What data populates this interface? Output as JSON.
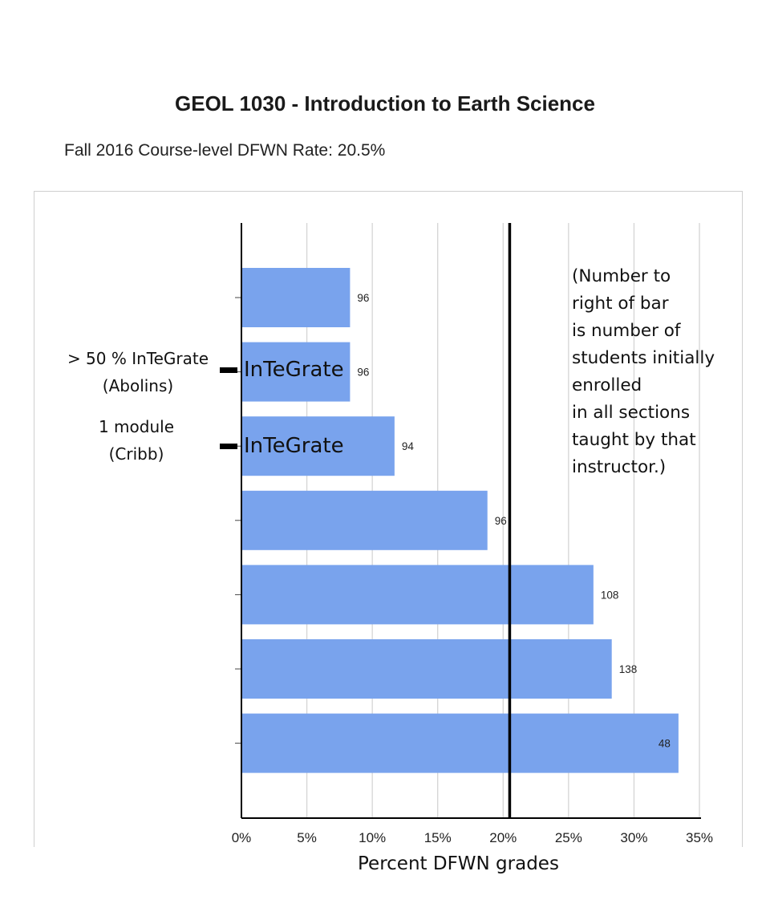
{
  "header": {
    "title": "GEOL 1030 - Introduction to Earth Science",
    "subtitle": "Fall 2016 Course-level DFWN Rate: 20.5%"
  },
  "chart_data": {
    "type": "bar",
    "orientation": "horizontal",
    "title": "GEOL 1030 - Introduction to Earth Science",
    "xlabel": "Percent DFWN grades",
    "ylabel": "",
    "xlim": [
      0,
      35
    ],
    "xticks": [
      0,
      5,
      10,
      15,
      20,
      25,
      30,
      35
    ],
    "xtick_labels": [
      "0%",
      "5%",
      "10%",
      "15%",
      "20%",
      "25%",
      "30%",
      "35%"
    ],
    "grid": true,
    "bar_color": "#79a3ed",
    "reference_line": {
      "value": 20.5,
      "label": "Fall 2016 Course-level DFWN Rate: 20.5%"
    },
    "bars": [
      {
        "value": 8.3,
        "label": "96",
        "tag": ""
      },
      {
        "value": 8.3,
        "label": "96",
        "tag": "InTeGrate"
      },
      {
        "value": 11.7,
        "label": "94",
        "tag": "InTeGrate"
      },
      {
        "value": 18.8,
        "label": "96",
        "tag": ""
      },
      {
        "value": 26.9,
        "label": "108",
        "tag": ""
      },
      {
        "value": 28.3,
        "label": "138",
        "tag": ""
      },
      {
        "value": 33.4,
        "label": "48",
        "tag": ""
      }
    ]
  },
  "annotations": {
    "note": "(Number to right of bar is number of students initially enrolled in all sections taught by that instructor.)",
    "note_lines": [
      "(Number to",
      "right of bar",
      "is number of",
      "students initially",
      "enrolled",
      "in all sections",
      "taught by that",
      "instructor.)"
    ],
    "abolins": [
      "> 50 % InTeGrate",
      "(Abolins)"
    ],
    "cribb": [
      "1 module",
      "(Cribb)"
    ],
    "tag_1": "InTeGrate",
    "tag_2": "InTeGrate"
  }
}
